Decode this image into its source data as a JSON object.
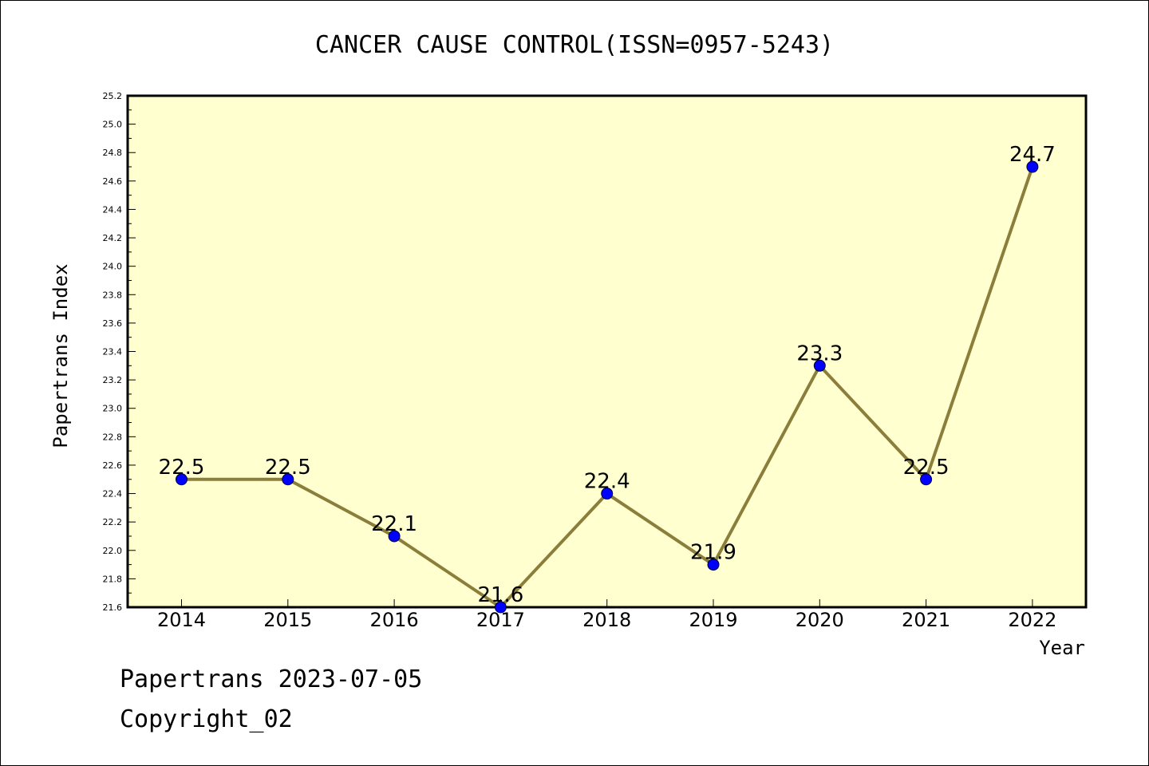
{
  "chart_data": {
    "type": "line",
    "title": "CANCER CAUSE CONTROL(ISSN=0957-5243)",
    "xlabel": "Year",
    "ylabel": "Papertrans Index",
    "categories": [
      "2014",
      "2015",
      "2016",
      "2017",
      "2018",
      "2019",
      "2020",
      "2021",
      "2022"
    ],
    "series": [
      {
        "values": [
          22.5,
          22.5,
          22.1,
          21.6,
          22.4,
          21.9,
          23.3,
          22.5,
          24.7
        ]
      }
    ],
    "data_labels": [
      "22.5",
      "22.5",
      "22.1",
      "21.6",
      "22.4",
      "21.9",
      "23.3",
      "22.5",
      "24.7"
    ],
    "ylim": [
      21.6,
      25.2
    ],
    "yticks": [
      "21.6",
      "21.8",
      "22.0",
      "22.2",
      "22.4",
      "22.6",
      "22.8",
      "23.0",
      "23.2",
      "23.4",
      "23.6",
      "23.8",
      "24.0",
      "24.2",
      "24.4",
      "24.6",
      "24.8",
      "25.0",
      "25.2"
    ],
    "grid": false,
    "legend": "none",
    "colors": {
      "plot_background": "#ffffd0",
      "line": "#8b7d3a",
      "marker": "#0000ff"
    }
  },
  "footer": {
    "date_text": "Papertrans 2023-07-05",
    "copyright_text": "Copyright_02"
  }
}
